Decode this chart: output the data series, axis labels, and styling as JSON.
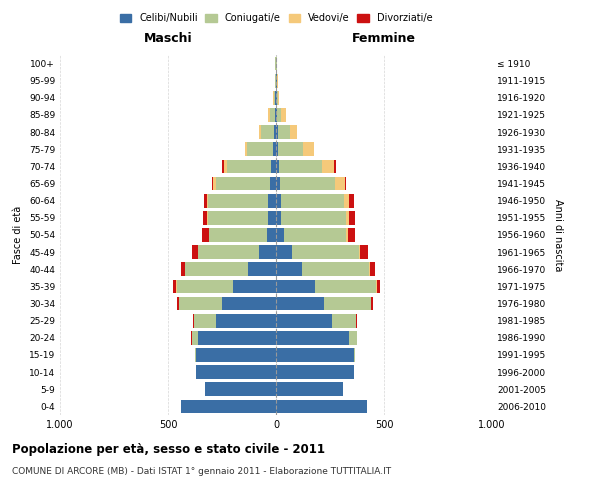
{
  "age_groups": [
    "0-4",
    "5-9",
    "10-14",
    "15-19",
    "20-24",
    "25-29",
    "30-34",
    "35-39",
    "40-44",
    "45-49",
    "50-54",
    "55-59",
    "60-64",
    "65-69",
    "70-74",
    "75-79",
    "80-84",
    "85-89",
    "90-94",
    "95-99",
    "100+"
  ],
  "birth_years": [
    "2006-2010",
    "2001-2005",
    "1996-2000",
    "1991-1995",
    "1986-1990",
    "1981-1985",
    "1976-1980",
    "1971-1975",
    "1966-1970",
    "1961-1965",
    "1956-1960",
    "1951-1955",
    "1946-1950",
    "1941-1945",
    "1936-1940",
    "1931-1935",
    "1926-1930",
    "1921-1925",
    "1916-1920",
    "1911-1915",
    "≤ 1910"
  ],
  "males": {
    "celibi": [
      440,
      330,
      370,
      370,
      360,
      280,
      250,
      200,
      130,
      80,
      40,
      35,
      35,
      30,
      25,
      15,
      10,
      5,
      3,
      2,
      2
    ],
    "coniugati": [
      0,
      1,
      2,
      5,
      30,
      100,
      200,
      260,
      290,
      280,
      270,
      280,
      280,
      250,
      200,
      120,
      60,
      25,
      8,
      3,
      1
    ],
    "vedovi": [
      0,
      0,
      0,
      0,
      0,
      0,
      0,
      1,
      1,
      2,
      2,
      3,
      5,
      10,
      15,
      10,
      8,
      5,
      2,
      0,
      0
    ],
    "divorziati": [
      0,
      0,
      0,
      0,
      2,
      5,
      10,
      15,
      20,
      25,
      30,
      20,
      15,
      5,
      10,
      0,
      0,
      0,
      0,
      0,
      0
    ]
  },
  "females": {
    "nubili": [
      420,
      310,
      360,
      360,
      340,
      260,
      220,
      180,
      120,
      75,
      35,
      25,
      25,
      20,
      15,
      10,
      8,
      5,
      3,
      3,
      2
    ],
    "coniugate": [
      0,
      1,
      2,
      5,
      35,
      110,
      220,
      285,
      310,
      310,
      290,
      300,
      290,
      255,
      200,
      115,
      55,
      20,
      5,
      2,
      1
    ],
    "vedove": [
      0,
      0,
      0,
      0,
      0,
      0,
      1,
      2,
      3,
      5,
      8,
      15,
      25,
      45,
      55,
      50,
      35,
      20,
      8,
      2,
      0
    ],
    "divorziate": [
      0,
      0,
      0,
      0,
      2,
      5,
      10,
      15,
      25,
      35,
      35,
      25,
      20,
      5,
      10,
      0,
      0,
      0,
      0,
      0,
      0
    ]
  },
  "color_celibi": "#3a6ea5",
  "color_coniugati": "#b5c994",
  "color_vedovi": "#f5c97a",
  "color_divorziati": "#cc1111",
  "xlim": 1000,
  "title": "Popolazione per età, sesso e stato civile - 2011",
  "subtitle": "COMUNE DI ARCORE (MB) - Dati ISTAT 1° gennaio 2011 - Elaborazione TUTTITALIA.IT",
  "ylabel": "Fasce di età",
  "ylabel_right": "Anni di nascita",
  "xlabel_maschi": "Maschi",
  "xlabel_femmine": "Femmine"
}
